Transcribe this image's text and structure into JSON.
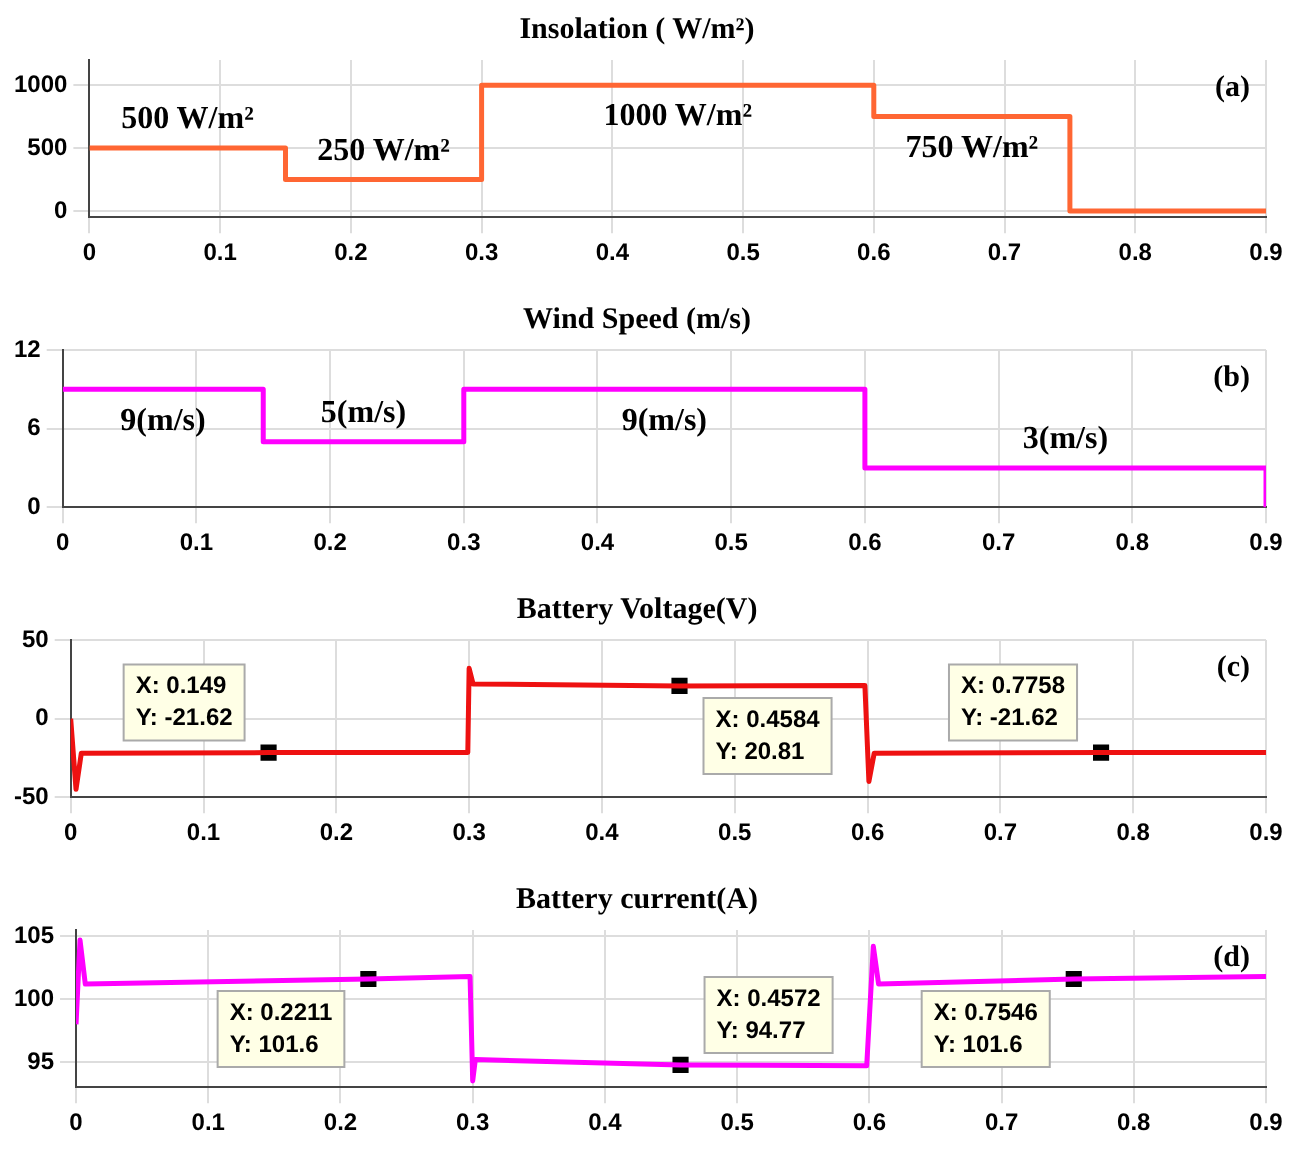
{
  "chart_data": [
    {
      "type": "line",
      "title": "Insolation ( W/m²)",
      "xlim": [
        0,
        0.9
      ],
      "xticks": [
        0,
        0.1,
        0.2,
        0.3,
        0.4,
        0.5,
        0.6,
        0.7,
        0.8,
        0.9
      ],
      "ylim": [
        -50,
        1200
      ],
      "yticks": [
        0,
        500,
        1000
      ],
      "grid": true,
      "series": [
        {
          "color": "#ff6633",
          "marker": "none",
          "x": [
            0,
            0.15,
            0.15,
            0.3,
            0.3,
            0.6,
            0.6,
            0.75,
            0.75,
            0.9
          ],
          "values": [
            500,
            500,
            250,
            250,
            1000,
            1000,
            750,
            750,
            0,
            0
          ]
        }
      ],
      "annotations": [
        "500 W/m²",
        "250 W/m²",
        "1000 W/m²",
        "750 W/m²",
        "(a)"
      ]
    },
    {
      "type": "line",
      "title": "Wind Speed (m/s)",
      "xlim": [
        0,
        0.9
      ],
      "xticks": [
        0,
        0.1,
        0.2,
        0.3,
        0.4,
        0.5,
        0.6,
        0.7,
        0.8,
        0.9
      ],
      "ylim": [
        0,
        12
      ],
      "yticks": [
        0,
        6,
        12
      ],
      "grid": true,
      "series": [
        {
          "color": "#ff00ff",
          "marker": "none",
          "x": [
            0,
            0.15,
            0.15,
            0.3,
            0.3,
            0.6,
            0.6,
            0.9,
            0.9
          ],
          "values": [
            9,
            9,
            5,
            5,
            9,
            9,
            3,
            3,
            0
          ]
        }
      ],
      "annotations": [
        "9(m/s)",
        "5(m/s)",
        "9(m/s)",
        "3(m/s)",
        "(b)"
      ]
    },
    {
      "type": "line",
      "title": "Battery Voltage(V)",
      "xlim": [
        0,
        0.9
      ],
      "xticks": [
        0,
        0.1,
        0.2,
        0.3,
        0.4,
        0.5,
        0.6,
        0.7,
        0.8,
        0.9
      ],
      "ylim": [
        -50,
        50
      ],
      "yticks": [
        -50,
        0,
        50
      ],
      "grid": true,
      "series": [
        {
          "color": "#ee1111",
          "marker": "none",
          "x": [
            0,
            0.004,
            0.008,
            0.149,
            0.299,
            0.3,
            0.303,
            0.4584,
            0.598,
            0.601,
            0.605,
            0.7758,
            0.9
          ],
          "values": [
            0,
            -45,
            -22,
            -21.62,
            -21.6,
            32,
            22,
            20.81,
            21,
            -40,
            -22,
            -21.62,
            -21.6
          ]
        },
        {
          "type": "scatter",
          "color": "#000000",
          "marker": "square",
          "x": [
            0.149,
            0.4584,
            0.7758
          ],
          "values": [
            -21.62,
            20.81,
            -21.62
          ],
          "value_labels": [
            "X: 0.149\nY: -21.62",
            "X: 0.4584\nY: 20.81",
            "X: 0.7758\nY: -21.62"
          ]
        }
      ],
      "annotations": [
        "(c)"
      ]
    },
    {
      "type": "line",
      "title": "Battery current(A)",
      "xlim": [
        0,
        0.9
      ],
      "xticks": [
        0,
        0.1,
        0.2,
        0.3,
        0.4,
        0.5,
        0.6,
        0.7,
        0.8,
        0.9
      ],
      "ylim": [
        93,
        105.5
      ],
      "yticks": [
        95,
        100,
        105
      ],
      "grid": true,
      "series": [
        {
          "color": "#ff00ff",
          "marker": "none",
          "x": [
            0,
            0.003,
            0.007,
            0.2211,
            0.298,
            0.3,
            0.302,
            0.4572,
            0.598,
            0.603,
            0.607,
            0.7546,
            0.9
          ],
          "values": [
            98,
            104.7,
            101.2,
            101.6,
            101.8,
            93.5,
            95.2,
            94.77,
            94.7,
            104.2,
            101.2,
            101.6,
            101.8
          ]
        },
        {
          "type": "scatter",
          "color": "#000000",
          "marker": "square",
          "x": [
            0.2211,
            0.4572,
            0.7546
          ],
          "values": [
            101.6,
            94.77,
            101.6
          ],
          "value_labels": [
            "X: 0.2211\nY: 101.6",
            "X: 0.4572\nY: 94.77",
            "X: 0.7546\nY: 101.6"
          ]
        }
      ],
      "annotations": [
        "(d)"
      ]
    }
  ]
}
